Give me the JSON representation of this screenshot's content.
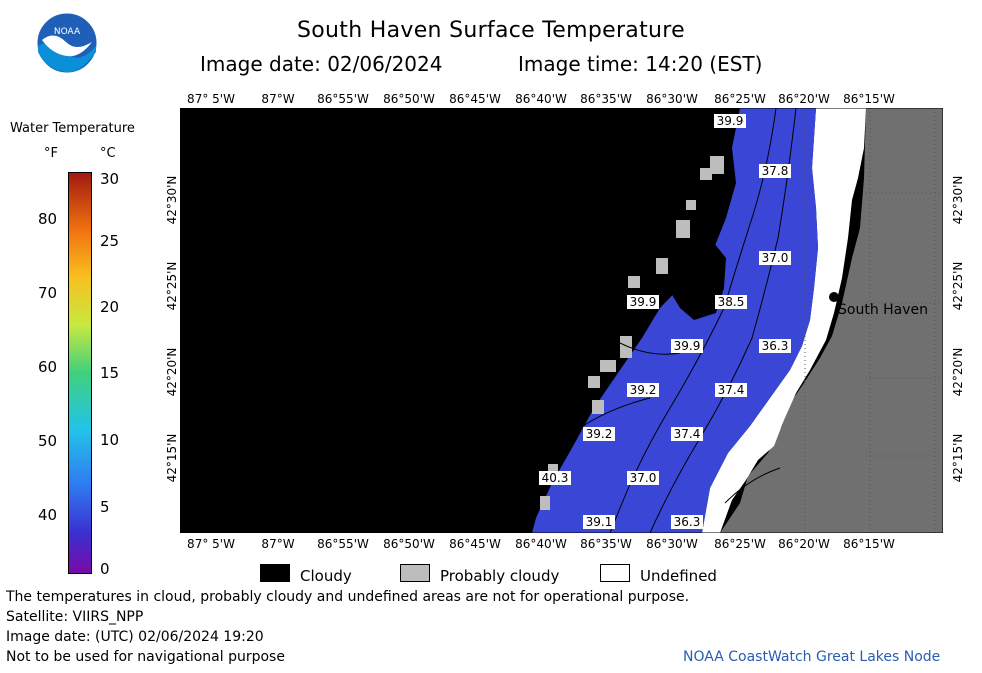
{
  "header": {
    "title": "South Haven Surface Temperature",
    "image_date": "Image date: 02/06/2024",
    "image_time": "Image time: 14:20 (EST)",
    "logo_text": "NOAA"
  },
  "colorbar": {
    "title": "Water Temperature",
    "unit_f": "°F",
    "unit_c": "°C",
    "f_ticks": [
      "80",
      "70",
      "60",
      "50",
      "40"
    ],
    "c_ticks": [
      "30",
      "25",
      "20",
      "15",
      "10",
      "5",
      "0"
    ]
  },
  "map": {
    "lon_labels": [
      "87° 5'W",
      "87°W",
      "86°55'W",
      "86°50'W",
      "86°45'W",
      "86°40'W",
      "86°35'W",
      "86°30'W",
      "86°25'W",
      "86°20'W",
      "86°15'W"
    ],
    "lat_labels": [
      "42°30'N",
      "42°25'N",
      "42°20'N",
      "42°15'N"
    ],
    "place_name": "South Haven",
    "temperature_labels": [
      "39.9",
      "37.8",
      "37.0",
      "39.9",
      "38.5",
      "39.9",
      "36.3",
      "39.2",
      "37.4",
      "39.2",
      "37.4",
      "40.3",
      "37.0",
      "39.1",
      "36.3"
    ],
    "colors": {
      "cloud": "#000000",
      "water": "#3a47d6",
      "land": "#707070",
      "undefined": "#ffffff",
      "probably_cloudy": "#bdbdbd"
    }
  },
  "legend": {
    "cloudy": "Cloudy",
    "probably_cloudy": "Probably cloudy",
    "undefined": "Undefined"
  },
  "footer": {
    "disclaimer": "The temperatures in cloud, probably cloudy and undefined areas are not for operational purpose.",
    "satellite": "Satellite: VIIRS_NPP",
    "utc_date": "Image date: (UTC) 02/06/2024  19:20",
    "nav_warning": "Not to be used for navigational purpose",
    "credit": "NOAA CoastWatch Great Lakes Node"
  }
}
